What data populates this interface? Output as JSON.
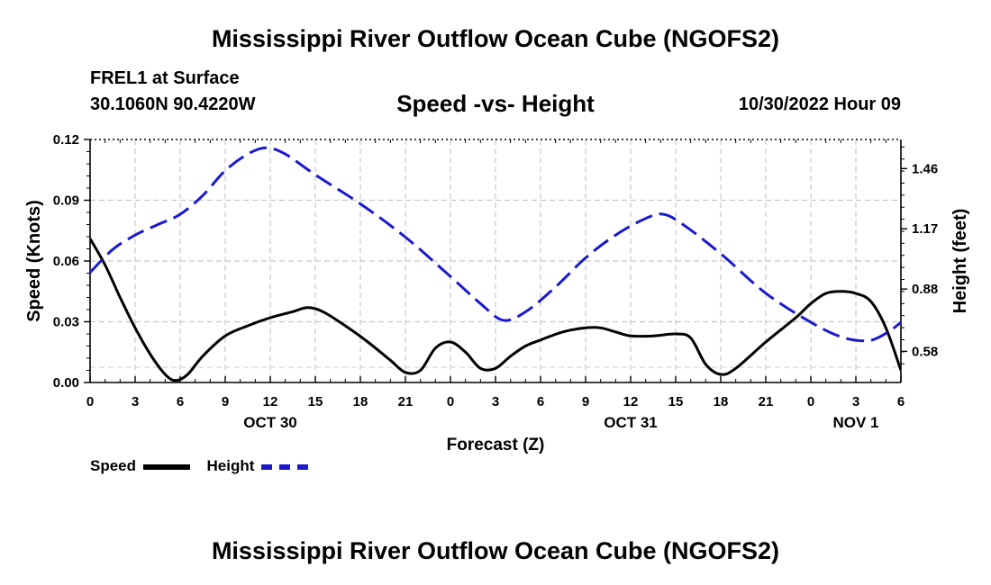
{
  "header": {
    "title": "Mississippi River Outflow Ocean Cube (NGOFS2)",
    "station": "FREL1 at Surface",
    "coords": "30.1060N  90.4220W",
    "plot_title": "Speed -vs- Height",
    "datetime": "10/30/2022 Hour 09"
  },
  "footer": {
    "title": "Mississippi River Outflow Ocean Cube (NGOFS2)"
  },
  "legend": {
    "speed_label": "Speed",
    "height_label": "Height"
  },
  "chart_data": {
    "type": "line",
    "title": "Speed -vs- Height",
    "xlabel": "Forecast (Z)",
    "ylabel_left": "Speed (Knots)",
    "ylabel_right": "Height (feet)",
    "x_range": [
      0,
      54
    ],
    "x_ticks": [
      0,
      3,
      6,
      9,
      12,
      15,
      18,
      21,
      24,
      27,
      30,
      33,
      36,
      39,
      42,
      45,
      48,
      51,
      54
    ],
    "x_tick_labels": [
      "0",
      "3",
      "6",
      "9",
      "12",
      "15",
      "18",
      "21",
      "0",
      "3",
      "6",
      "9",
      "12",
      "15",
      "18",
      "21",
      "0",
      "3",
      "6"
    ],
    "day_labels": [
      {
        "x": 12,
        "label": "OCT 30"
      },
      {
        "x": 36,
        "label": "OCT 31"
      },
      {
        "x": 51,
        "label": "NOV 1"
      }
    ],
    "ylim_left": [
      0,
      0.12
    ],
    "y_ticks_left": [
      0.0,
      0.03,
      0.06,
      0.09,
      0.12
    ],
    "y_tick_labels_left": [
      "0.00",
      "0.03",
      "0.06",
      "0.09",
      "0.12"
    ],
    "ylim_right": [
      0.43,
      1.6
    ],
    "y_ticks_right": [
      0.58,
      0.88,
      1.17,
      1.46
    ],
    "y_tick_labels_right": [
      "0.58",
      "0.88",
      "1.17",
      "1.46"
    ],
    "grid": true,
    "series": [
      {
        "name": "Speed",
        "axis": "left",
        "color": "#000000",
        "style": "solid",
        "x": [
          0,
          1,
          2,
          3,
          4,
          5,
          5.7,
          6.5,
          7.5,
          9,
          10.5,
          12,
          13.5,
          14.5,
          15.5,
          17,
          18.5,
          20,
          21,
          22,
          23,
          24,
          25,
          26,
          27,
          28,
          29,
          30,
          31.5,
          33,
          34,
          35,
          36,
          37.5,
          39,
          40,
          41,
          42,
          43,
          45,
          47,
          48,
          49,
          50,
          51,
          52,
          53,
          54
        ],
        "values": [
          0.071,
          0.058,
          0.042,
          0.027,
          0.014,
          0.004,
          0.001,
          0.004,
          0.013,
          0.023,
          0.028,
          0.032,
          0.035,
          0.037,
          0.035,
          0.028,
          0.02,
          0.011,
          0.005,
          0.006,
          0.017,
          0.02,
          0.015,
          0.007,
          0.007,
          0.013,
          0.018,
          0.021,
          0.025,
          0.027,
          0.027,
          0.025,
          0.023,
          0.023,
          0.024,
          0.022,
          0.009,
          0.004,
          0.007,
          0.02,
          0.032,
          0.039,
          0.044,
          0.045,
          0.044,
          0.04,
          0.027,
          0.006
        ]
      },
      {
        "name": "Height",
        "axis": "right",
        "color": "#1a1acc",
        "style": "dashed",
        "x": [
          0,
          1.5,
          3,
          4.5,
          6,
          7.5,
          9,
          10.5,
          11.7,
          13,
          15,
          18,
          21,
          24,
          26,
          27.5,
          29,
          31,
          33,
          35,
          37,
          38.2,
          39.5,
          42,
          45,
          48,
          50,
          51.5,
          52.3,
          53.3,
          54
        ],
        "values": [
          0.96,
          1.07,
          1.14,
          1.19,
          1.24,
          1.33,
          1.45,
          1.53,
          1.56,
          1.53,
          1.43,
          1.29,
          1.13,
          0.94,
          0.81,
          0.73,
          0.77,
          0.89,
          1.03,
          1.14,
          1.22,
          1.24,
          1.19,
          1.05,
          0.86,
          0.72,
          0.65,
          0.63,
          0.64,
          0.68,
          0.72
        ]
      }
    ]
  }
}
